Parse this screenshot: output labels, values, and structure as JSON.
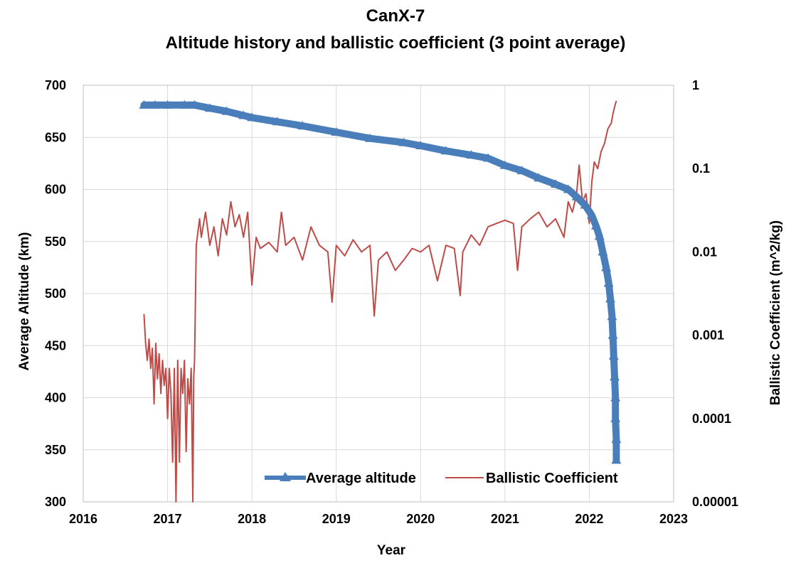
{
  "chart_data": {
    "type": "line",
    "title": "CanX-7",
    "subtitle": "Altitude history and ballistic coefficient (3 point average)",
    "xlabel": "Year",
    "ylabel": "Average Altitude (km)",
    "y2label": "Ballistic  Coefficient  (m^2/kg)",
    "xlim": [
      2016,
      2023
    ],
    "ylim": [
      300,
      700
    ],
    "y2lim": [
      1e-05,
      1
    ],
    "y2_scale": "log",
    "grid": true,
    "legend_position": "bottom-right",
    "x_ticks": [
      "2016",
      "2017",
      "2018",
      "2019",
      "2020",
      "2021",
      "2022",
      "2023"
    ],
    "y_ticks": [
      "300",
      "350",
      "400",
      "450",
      "500",
      "550",
      "600",
      "650",
      "700"
    ],
    "y2_ticks": [
      "0.00001",
      "0.0001",
      "0.001",
      "0.01",
      "0.1",
      "1"
    ],
    "series": [
      {
        "name": "Average altitude",
        "axis": "left",
        "color": "#4A7EBB",
        "marker": "triangle",
        "points": [
          [
            2016.72,
            681
          ],
          [
            2016.85,
            681
          ],
          [
            2017.0,
            681
          ],
          [
            2017.2,
            681
          ],
          [
            2017.32,
            681
          ],
          [
            2017.5,
            678
          ],
          [
            2017.7,
            675
          ],
          [
            2017.9,
            671
          ],
          [
            2018.0,
            669
          ],
          [
            2018.3,
            665
          ],
          [
            2018.6,
            661
          ],
          [
            2019.0,
            655
          ],
          [
            2019.4,
            649
          ],
          [
            2019.8,
            645
          ],
          [
            2020.0,
            642
          ],
          [
            2020.3,
            637
          ],
          [
            2020.6,
            633
          ],
          [
            2020.8,
            630
          ],
          [
            2021.0,
            623
          ],
          [
            2021.2,
            618
          ],
          [
            2021.4,
            611
          ],
          [
            2021.6,
            605
          ],
          [
            2021.75,
            600
          ],
          [
            2021.85,
            593
          ],
          [
            2021.95,
            585
          ],
          [
            2022.03,
            575
          ],
          [
            2022.08,
            565
          ],
          [
            2022.12,
            555
          ],
          [
            2022.16,
            540
          ],
          [
            2022.2,
            525
          ],
          [
            2022.23,
            510
          ],
          [
            2022.25,
            495
          ],
          [
            2022.27,
            478
          ],
          [
            2022.28,
            460
          ],
          [
            2022.29,
            440
          ],
          [
            2022.3,
            420
          ],
          [
            2022.31,
            400
          ],
          [
            2022.31,
            380
          ],
          [
            2022.32,
            360
          ],
          [
            2022.32,
            340
          ]
        ]
      },
      {
        "name": "Ballistic Coefficient",
        "axis": "right",
        "color": "#BE4B48",
        "marker": "none",
        "points": [
          [
            2016.72,
            0.0018
          ],
          [
            2016.74,
            0.0008
          ],
          [
            2016.76,
            0.0005
          ],
          [
            2016.78,
            0.0009
          ],
          [
            2016.8,
            0.0004
          ],
          [
            2016.82,
            0.0007
          ],
          [
            2016.84,
            0.00015
          ],
          [
            2016.86,
            0.0008
          ],
          [
            2016.88,
            0.0003
          ],
          [
            2016.9,
            0.0006
          ],
          [
            2016.92,
            0.0002
          ],
          [
            2016.94,
            0.0005
          ],
          [
            2016.96,
            0.00025
          ],
          [
            2016.98,
            0.0004
          ],
          [
            2017.0,
            0.0001
          ],
          [
            2017.02,
            0.0004
          ],
          [
            2017.04,
            0.0002
          ],
          [
            2017.06,
            3e-05
          ],
          [
            2017.08,
            0.0004
          ],
          [
            2017.1,
            1e-05
          ],
          [
            2017.12,
            0.0005
          ],
          [
            2017.14,
            3e-05
          ],
          [
            2017.16,
            0.0004
          ],
          [
            2017.18,
            0.0002
          ],
          [
            2017.2,
            0.0005
          ],
          [
            2017.22,
            4e-05
          ],
          [
            2017.24,
            0.0003
          ],
          [
            2017.26,
            0.00015
          ],
          [
            2017.28,
            0.0004
          ],
          [
            2017.3,
            1e-05
          ],
          [
            2017.31,
            0.0003
          ],
          [
            2017.32,
            0.0005
          ],
          [
            2017.34,
            0.012
          ],
          [
            2017.38,
            0.025
          ],
          [
            2017.4,
            0.015
          ],
          [
            2017.45,
            0.03
          ],
          [
            2017.5,
            0.012
          ],
          [
            2017.55,
            0.02
          ],
          [
            2017.6,
            0.009
          ],
          [
            2017.65,
            0.025
          ],
          [
            2017.7,
            0.016
          ],
          [
            2017.75,
            0.04
          ],
          [
            2017.8,
            0.02
          ],
          [
            2017.85,
            0.028
          ],
          [
            2017.9,
            0.015
          ],
          [
            2017.95,
            0.03
          ],
          [
            2018.0,
            0.004
          ],
          [
            2018.05,
            0.015
          ],
          [
            2018.1,
            0.011
          ],
          [
            2018.2,
            0.013
          ],
          [
            2018.3,
            0.01
          ],
          [
            2018.35,
            0.03
          ],
          [
            2018.4,
            0.012
          ],
          [
            2018.5,
            0.015
          ],
          [
            2018.6,
            0.008
          ],
          [
            2018.7,
            0.02
          ],
          [
            2018.8,
            0.012
          ],
          [
            2018.9,
            0.01
          ],
          [
            2018.95,
            0.0025
          ],
          [
            2019.0,
            0.012
          ],
          [
            2019.1,
            0.009
          ],
          [
            2019.2,
            0.014
          ],
          [
            2019.3,
            0.01
          ],
          [
            2019.4,
            0.012
          ],
          [
            2019.45,
            0.0017
          ],
          [
            2019.5,
            0.008
          ],
          [
            2019.6,
            0.01
          ],
          [
            2019.7,
            0.006
          ],
          [
            2019.8,
            0.008
          ],
          [
            2019.9,
            0.011
          ],
          [
            2020.0,
            0.01
          ],
          [
            2020.1,
            0.012
          ],
          [
            2020.2,
            0.0045
          ],
          [
            2020.3,
            0.012
          ],
          [
            2020.4,
            0.011
          ],
          [
            2020.47,
            0.003
          ],
          [
            2020.5,
            0.01
          ],
          [
            2020.6,
            0.016
          ],
          [
            2020.7,
            0.012
          ],
          [
            2020.8,
            0.02
          ],
          [
            2020.9,
            0.022
          ],
          [
            2021.0,
            0.024
          ],
          [
            2021.1,
            0.022
          ],
          [
            2021.15,
            0.006
          ],
          [
            2021.2,
            0.02
          ],
          [
            2021.3,
            0.025
          ],
          [
            2021.4,
            0.03
          ],
          [
            2021.5,
            0.02
          ],
          [
            2021.6,
            0.025
          ],
          [
            2021.7,
            0.015
          ],
          [
            2021.75,
            0.04
          ],
          [
            2021.8,
            0.03
          ],
          [
            2021.85,
            0.05
          ],
          [
            2021.88,
            0.11
          ],
          [
            2021.92,
            0.04
          ],
          [
            2021.96,
            0.05
          ],
          [
            2022.0,
            0.022
          ],
          [
            2022.03,
            0.07
          ],
          [
            2022.06,
            0.12
          ],
          [
            2022.1,
            0.1
          ],
          [
            2022.14,
            0.16
          ],
          [
            2022.18,
            0.2
          ],
          [
            2022.22,
            0.3
          ],
          [
            2022.26,
            0.35
          ],
          [
            2022.28,
            0.45
          ],
          [
            2022.3,
            0.55
          ],
          [
            2022.32,
            0.65
          ]
        ]
      }
    ]
  }
}
